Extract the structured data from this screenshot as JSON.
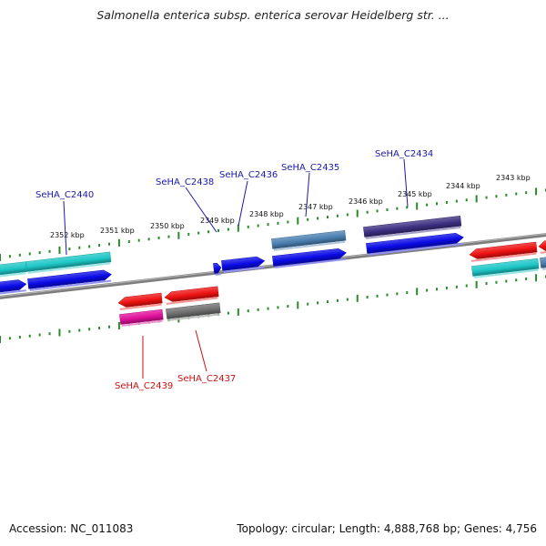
{
  "title": "Salmonella enterica subsp. enterica serovar Heidelberg str. ...",
  "footer": {
    "accession": "Accession: NC_011083",
    "topology": "Topology: circular; Length: 4,888,768 bp; Genes: 4,756"
  },
  "colors": {
    "backbone": "#7d7d7d",
    "tick": "#2a8a2a",
    "label_forward": "#1a1aa8",
    "label_reverse": "#cc1111",
    "cds_blue": "#0a0ae6",
    "cyan": "#1cc6c6",
    "red": "#ee1111",
    "magenta": "#e0109a",
    "gray": "#6f6f6f",
    "steel": "#4a7fb0",
    "indigo": "#3d2f82"
  },
  "tick_labels": [
    "2352 kbp",
    "2351 kbp",
    "2350 kbp",
    "2349 kbp",
    "2348 kbp",
    "2347 kbp",
    "2346 kbp",
    "2345 kbp",
    "2344 kbp",
    "2343 kbp"
  ],
  "gene_labels": {
    "forward": [
      "SeHA_C2440",
      "SeHA_C2438",
      "SeHA_C2436",
      "SeHA_C2435",
      "SeHA_C2434"
    ],
    "reverse": [
      "SeHA_C2439",
      "SeHA_C2437"
    ]
  }
}
